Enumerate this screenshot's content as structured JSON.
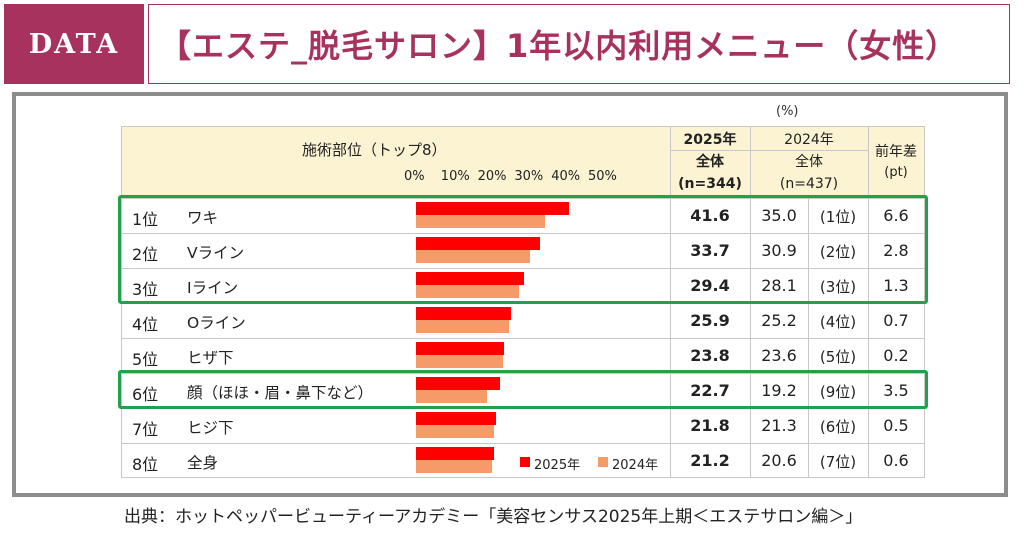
{
  "header": {
    "badge": "DATA",
    "title": "【エステ_脱毛サロン】1年以内利用メニュー（女性）"
  },
  "table": {
    "unit": "(%)",
    "item_header": "施術部位（トップ8）",
    "col2025_year": "2025年",
    "col2025_sub": "全体",
    "col2025_n": "(n=344)",
    "col2024_year": "2024年",
    "col2024_sub": "全体",
    "col2024_n": "(n=437)",
    "diff_header": "前年差",
    "diff_unit": "(pt)"
  },
  "chart_data": {
    "type": "bar",
    "orientation": "horizontal",
    "xlim": [
      0,
      50
    ],
    "x_ticks": [
      "0%",
      "10%",
      "20%",
      "30%",
      "40%",
      "50%"
    ],
    "series_names": [
      "2025年",
      "2024年"
    ],
    "colors": {
      "2025": "#ff0000",
      "2024": "#f79a6a"
    },
    "rows": [
      {
        "rank": "1位",
        "label": "ワキ",
        "v2025": 41.6,
        "v2024": 35.0,
        "v2025_text": "41.6",
        "v2024_text": "35.0",
        "rank2024": "(1位)",
        "diff": "6.6"
      },
      {
        "rank": "2位",
        "label": "Vライン",
        "v2025": 33.7,
        "v2024": 30.9,
        "v2025_text": "33.7",
        "v2024_text": "30.9",
        "rank2024": "(2位)",
        "diff": "2.8"
      },
      {
        "rank": "3位",
        "label": "Iライン",
        "v2025": 29.4,
        "v2024": 28.1,
        "v2025_text": "29.4",
        "v2024_text": "28.1",
        "rank2024": "(3位)",
        "diff": "1.3"
      },
      {
        "rank": "4位",
        "label": "Oライン",
        "v2025": 25.9,
        "v2024": 25.2,
        "v2025_text": "25.9",
        "v2024_text": "25.2",
        "rank2024": "(4位)",
        "diff": "0.7"
      },
      {
        "rank": "5位",
        "label": "ヒザ下",
        "v2025": 23.8,
        "v2024": 23.6,
        "v2025_text": "23.8",
        "v2024_text": "23.6",
        "rank2024": "(5位)",
        "diff": "0.2"
      },
      {
        "rank": "6位",
        "label": "顔（ほほ・眉・鼻下など）",
        "v2025": 22.7,
        "v2024": 19.2,
        "v2025_text": "22.7",
        "v2024_text": "19.2",
        "rank2024": "(9位)",
        "diff": "3.5"
      },
      {
        "rank": "7位",
        "label": "ヒジ下",
        "v2025": 21.8,
        "v2024": 21.3,
        "v2025_text": "21.8",
        "v2024_text": "21.3",
        "rank2024": "(6位)",
        "diff": "0.5"
      },
      {
        "rank": "8位",
        "label": "全身",
        "v2025": 21.2,
        "v2024": 20.6,
        "v2025_text": "21.2",
        "v2024_text": "20.6",
        "rank2024": "(7位)",
        "diff": "0.6"
      }
    ],
    "highlight_groups": [
      [
        1,
        3
      ],
      [
        6,
        6
      ]
    ]
  },
  "source": "出典：ホットペッパービューティーアカデミー「美容センサス2025年上期＜エステサロン編＞」"
}
